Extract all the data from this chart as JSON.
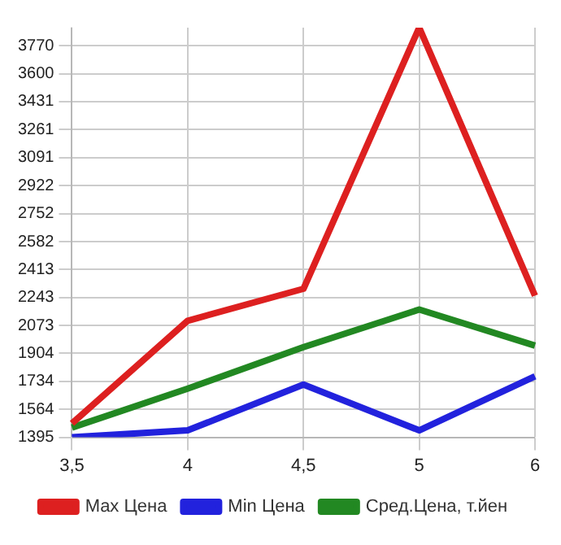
{
  "chart_data": {
    "type": "line",
    "categories": [
      "3,5",
      "4",
      "4,5",
      "5",
      "6"
    ],
    "series": [
      {
        "name": "Max Цена",
        "color": "#dd2020",
        "values": [
          1479,
          2102,
          2296,
          3880,
          2254
        ]
      },
      {
        "name": "Min Цена",
        "color": "#2222dd",
        "values": [
          1395,
          1437,
          1715,
          1437,
          1765
        ]
      },
      {
        "name": "Сред.Цена, т.йен",
        "color": "#228822",
        "values": [
          1454,
          1690,
          1942,
          2170,
          1951
        ]
      }
    ],
    "ylim": [
      1395,
      3880
    ],
    "yticks": [
      1395,
      1564,
      1734,
      1904,
      2073,
      2243,
      2413,
      2582,
      2752,
      2922,
      3091,
      3261,
      3431,
      3600,
      3770
    ],
    "grid": true,
    "legend": "bottom",
    "marker": "none",
    "line_style": "solid"
  }
}
